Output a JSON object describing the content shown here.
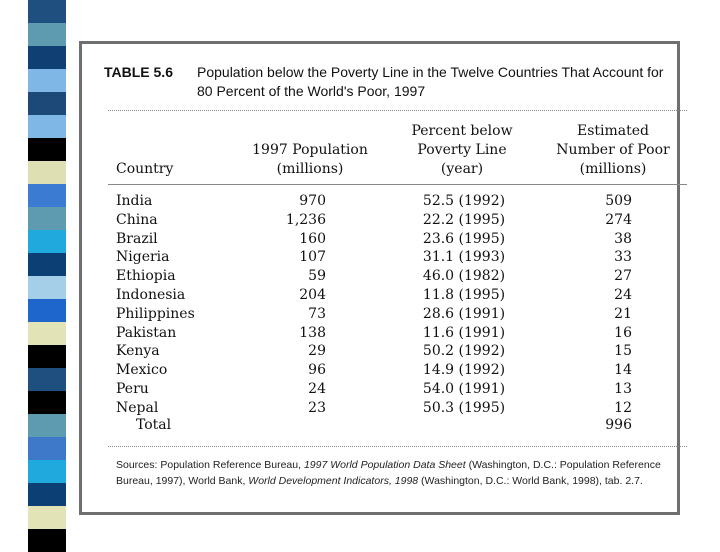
{
  "stripe_colors": [
    "#1e4f7e",
    "#5f9bb0",
    "#0f3f73",
    "#7fb8e6",
    "#1d4978",
    "#7fb8e6",
    "#000000",
    "#dedfb3",
    "#3b7bd1",
    "#5f9bb0",
    "#1fa9dd",
    "#0c3f73",
    "#a5cfe8",
    "#1e65cc",
    "#e2e3b6",
    "#000000",
    "#1e4f7e",
    "#000000",
    "#5f9bb0",
    "#3e78c8",
    "#1fa9dd",
    "#0c3f73",
    "#e2e3b6",
    "#000000"
  ],
  "table": {
    "number": "TABLE 5.6",
    "title": "Population below the Poverty Line in the Twelve Countries That Account for 80 Percent of the World's Poor, 1997",
    "headers": {
      "country": [
        "Country"
      ],
      "population": [
        "1997 Population",
        "(millions)"
      ],
      "percent": [
        "Percent below",
        "Poverty Line",
        "(year)"
      ],
      "poor": [
        "Estimated",
        "Number of Poor",
        "(millions)"
      ]
    },
    "rows": [
      {
        "country": "India",
        "population": "970",
        "percent": "52.5 (1992)",
        "poor": "509"
      },
      {
        "country": "China",
        "population": "1,236",
        "percent": "22.2 (1995)",
        "poor": "274"
      },
      {
        "country": "Brazil",
        "population": "160",
        "percent": "23.6 (1995)",
        "poor": "38"
      },
      {
        "country": "Nigeria",
        "population": "107",
        "percent": "31.1 (1993)",
        "poor": "33"
      },
      {
        "country": "Ethiopia",
        "population": "59",
        "percent": "46.0 (1982)",
        "poor": "27"
      },
      {
        "country": "Indonesia",
        "population": "204",
        "percent": "11.8 (1995)",
        "poor": "24"
      },
      {
        "country": "Philippines",
        "population": "73",
        "percent": "28.6 (1991)",
        "poor": "21"
      },
      {
        "country": "Pakistan",
        "population": "138",
        "percent": "11.6 (1991)",
        "poor": "16"
      },
      {
        "country": "Kenya",
        "population": "29",
        "percent": "50.2 (1992)",
        "poor": "15"
      },
      {
        "country": "Mexico",
        "population": "96",
        "percent": "14.9 (1992)",
        "poor": "14"
      },
      {
        "country": "Peru",
        "population": "24",
        "percent": "54.0 (1991)",
        "poor": "13"
      },
      {
        "country": "Nepal",
        "population": "23",
        "percent": "50.3 (1995)",
        "poor": "12"
      }
    ],
    "total": {
      "label": "Total",
      "poor": "996"
    }
  },
  "sources": {
    "s1": "Sources: Population Reference Bureau, ",
    "s2": "1997 World Population Data Sheet",
    "s3": " (Washington, D.C.: Population Reference Bureau, 1997), World Bank, ",
    "s4": "World Development Indicators, 1998",
    "s5": " (Washington, D.C.: World Bank, 1998), tab. 2.7."
  }
}
